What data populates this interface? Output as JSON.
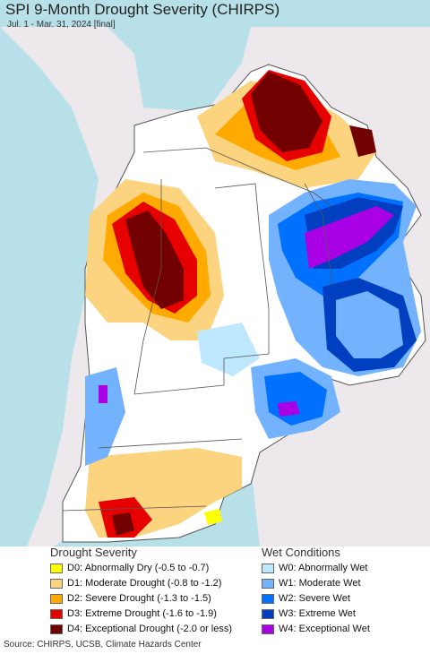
{
  "header": {
    "title": "SPI 9-Month Drought Severity (CHIRPS)",
    "subtitle": "Jul. 1 - Mar. 31, 2024 [final]"
  },
  "legend": {
    "drought_title": "Drought Severity",
    "wet_title": "Wet Conditions",
    "drought": [
      {
        "label": "D0: Abnormally Dry (-0.5 to -0.7)",
        "color": "#ffff00"
      },
      {
        "label": "D1: Moderate Drought (-0.8 to -1.2)",
        "color": "#fcd37f"
      },
      {
        "label": "D2: Severe Drought (-1.3 to -1.5)",
        "color": "#ffaa00"
      },
      {
        "label": "D3: Extreme Drought (-1.6 to -1.9)",
        "color": "#e60000"
      },
      {
        "label": "D4: Exceptional Drought (-2.0 or less)",
        "color": "#730000"
      }
    ],
    "wet": [
      {
        "label": "W0: Abnormally Wet",
        "color": "#bee8ff"
      },
      {
        "label": "W1: Moderate Wet",
        "color": "#73b2ff"
      },
      {
        "label": "W2: Severe Wet",
        "color": "#0070ff"
      },
      {
        "label": "W3: Extreme Wet",
        "color": "#0040c0"
      },
      {
        "label": "W4: Exceptional Wet",
        "color": "#a900e6"
      }
    ]
  },
  "footer": {
    "source": "Source: CHIRPS, UCSB, Climate Hazards Center"
  },
  "colors": {
    "ocean": "#b8e0e8",
    "other_land": "#ece8ec",
    "normal": "#ffffff",
    "border": "#555555"
  }
}
